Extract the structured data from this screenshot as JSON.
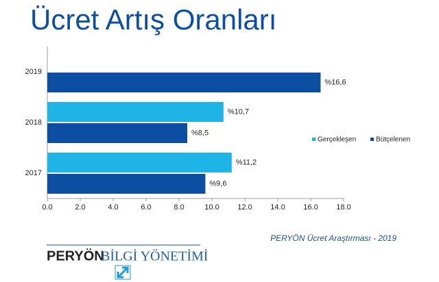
{
  "chart_data": {
    "type": "hbar",
    "title": "Ücret Artış Oranları",
    "categories": [
      "2019",
      "2018",
      "2017"
    ],
    "series": [
      {
        "name": "Gerçekleşen",
        "color": "#1fb4e6",
        "values": [
          null,
          10.7,
          11.2
        ],
        "value_labels": [
          null,
          "%10,7",
          "%11,2"
        ]
      },
      {
        "name": "Bütçelenen",
        "color": "#0b4ea2",
        "values": [
          16.6,
          8.5,
          9.6
        ],
        "value_labels": [
          "%16,6",
          "%8,5",
          "%9,6"
        ]
      }
    ],
    "xlim": [
      0,
      18
    ],
    "xticks": [
      {
        "value": 0,
        "label": "0.0"
      },
      {
        "value": 2,
        "label": "2.0"
      },
      {
        "value": 4,
        "label": "4.0"
      },
      {
        "value": 6,
        "label": "6.0"
      },
      {
        "value": 8,
        "label": "8.0"
      },
      {
        "value": 10,
        "label": "10.0"
      },
      {
        "value": 12,
        "label": "12.0"
      },
      {
        "value": 14,
        "label": "14.0"
      },
      {
        "value": 16,
        "label": "16.0"
      },
      {
        "value": 18,
        "label": "18.0"
      }
    ],
    "grid": false,
    "legend": "right",
    "source": "PERYÖN Ücret Araştırması - 2019",
    "logo": {
      "brand": "PERYÖN",
      "product": "BİLGİ YÖNETİMİ"
    }
  }
}
